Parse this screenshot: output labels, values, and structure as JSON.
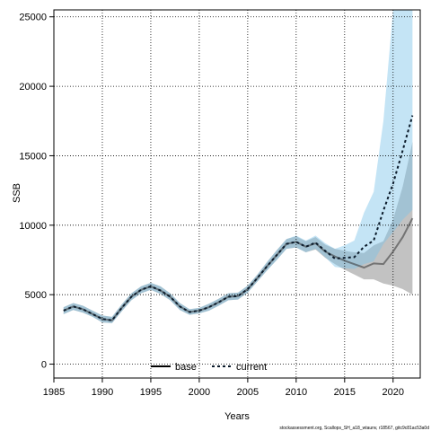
{
  "chart_data": {
    "type": "line",
    "title": "",
    "xlabel": "Years",
    "ylabel": "SSB",
    "xlim": [
      1985,
      2022.8
    ],
    "ylim": [
      -1000,
      25500
    ],
    "x_ticks": [
      1985,
      1990,
      1995,
      2000,
      2005,
      2010,
      2015,
      2020
    ],
    "y_ticks": [
      0,
      5000,
      10000,
      15000,
      20000,
      25000
    ],
    "grid": true,
    "legend": {
      "placement": "bottom-center",
      "entries": [
        "base",
        "current"
      ]
    },
    "footnote": "stockassessment.org, Scallops_SH_a18_wtaunv, r18567, gitc9c81ac53a0d",
    "series": [
      {
        "name": "base",
        "color": "#333333",
        "style": "solid",
        "band_color": "#9a9a9a",
        "x": [
          1986,
          1987,
          1988,
          1989,
          1990,
          1991,
          1992,
          1993,
          1994,
          1995,
          1996,
          1997,
          1998,
          1999,
          2000,
          2001,
          2002,
          2003,
          2004,
          2005,
          2006,
          2007,
          2008,
          2009,
          2010,
          2011,
          2012,
          2013,
          2014,
          2015,
          2016,
          2017,
          2018,
          2019,
          2020,
          2021,
          2022
        ],
        "values": [
          3850,
          4150,
          3950,
          3600,
          3250,
          3150,
          4050,
          4850,
          5350,
          5600,
          5300,
          4850,
          4150,
          3750,
          3850,
          4100,
          4450,
          4850,
          4900,
          5400,
          6200,
          7050,
          7850,
          8650,
          8800,
          8450,
          8700,
          8100,
          7750,
          7450,
          7200,
          6950,
          7250,
          7200,
          8100,
          9150,
          10500
        ],
        "lower": [
          3600,
          3900,
          3700,
          3400,
          3000,
          2950,
          3800,
          4600,
          5100,
          5350,
          5050,
          4600,
          3900,
          3550,
          3650,
          3850,
          4200,
          4600,
          4650,
          5150,
          5950,
          6750,
          7500,
          8300,
          8400,
          8050,
          8250,
          7650,
          7200,
          6800,
          6450,
          6100,
          6100,
          5800,
          5650,
          5400,
          5000
        ],
        "upper": [
          4100,
          4400,
          4200,
          3850,
          3500,
          3400,
          4300,
          5100,
          5600,
          5850,
          5600,
          5100,
          4400,
          3950,
          4050,
          4350,
          4700,
          5100,
          5150,
          5650,
          6450,
          7350,
          8200,
          9000,
          9200,
          8850,
          9150,
          8600,
          8300,
          8150,
          8050,
          8000,
          8550,
          8850,
          10400,
          12800,
          16000
        ]
      },
      {
        "name": "current",
        "color": "#0a1a2a",
        "style": "dashed",
        "band_color": "#7dc3e8",
        "x": [
          1986,
          1987,
          1988,
          1989,
          1990,
          1991,
          1992,
          1993,
          1994,
          1995,
          1996,
          1997,
          1998,
          1999,
          2000,
          2001,
          2002,
          2003,
          2004,
          2005,
          2006,
          2007,
          2008,
          2009,
          2010,
          2011,
          2012,
          2013,
          2014,
          2015,
          2016,
          2017,
          2018,
          2019,
          2020,
          2021,
          2022
        ],
        "values": [
          3850,
          4150,
          3950,
          3600,
          3250,
          3150,
          4050,
          4850,
          5350,
          5600,
          5300,
          4850,
          4150,
          3750,
          3850,
          4100,
          4450,
          4850,
          4900,
          5400,
          6200,
          7050,
          7850,
          8650,
          8800,
          8450,
          8750,
          8150,
          7600,
          7650,
          7700,
          8450,
          8900,
          11050,
          13000,
          15400,
          17900
        ],
        "lower": [
          3600,
          3900,
          3700,
          3400,
          3000,
          2950,
          3800,
          4600,
          5100,
          5350,
          5050,
          4600,
          3900,
          3550,
          3650,
          3850,
          4200,
          4600,
          4650,
          5150,
          5950,
          6750,
          7500,
          8300,
          8400,
          8050,
          8300,
          7700,
          7000,
          6900,
          6850,
          7200,
          7400,
          8650,
          9500,
          10400,
          11100
        ],
        "upper": [
          4100,
          4400,
          4200,
          3850,
          3500,
          3400,
          4300,
          5100,
          5600,
          5850,
          5600,
          5100,
          4400,
          3950,
          4050,
          4350,
          4700,
          5100,
          5150,
          5650,
          6450,
          7350,
          8200,
          9000,
          9250,
          8900,
          9250,
          8700,
          8300,
          8550,
          8900,
          10900,
          12400,
          17500,
          25500,
          25500,
          25500
        ]
      }
    ]
  }
}
